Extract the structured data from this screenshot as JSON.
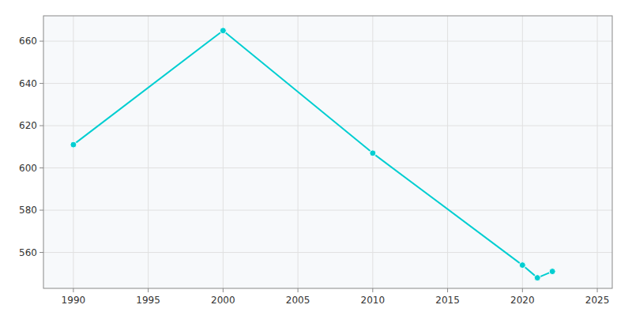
{
  "chart_data": {
    "type": "line",
    "x": [
      1990,
      2000,
      2010,
      2020,
      2021,
      2022
    ],
    "values": [
      611,
      665,
      607,
      554,
      548,
      551
    ],
    "color": "#00CED1",
    "marker": "circle",
    "xlim": [
      1988,
      2026
    ],
    "ylim": [
      543,
      672
    ],
    "xticks": [
      1990,
      1995,
      2000,
      2005,
      2010,
      2015,
      2020,
      2025
    ],
    "yticks": [
      560,
      580,
      600,
      620,
      640,
      660
    ],
    "grid": true
  }
}
